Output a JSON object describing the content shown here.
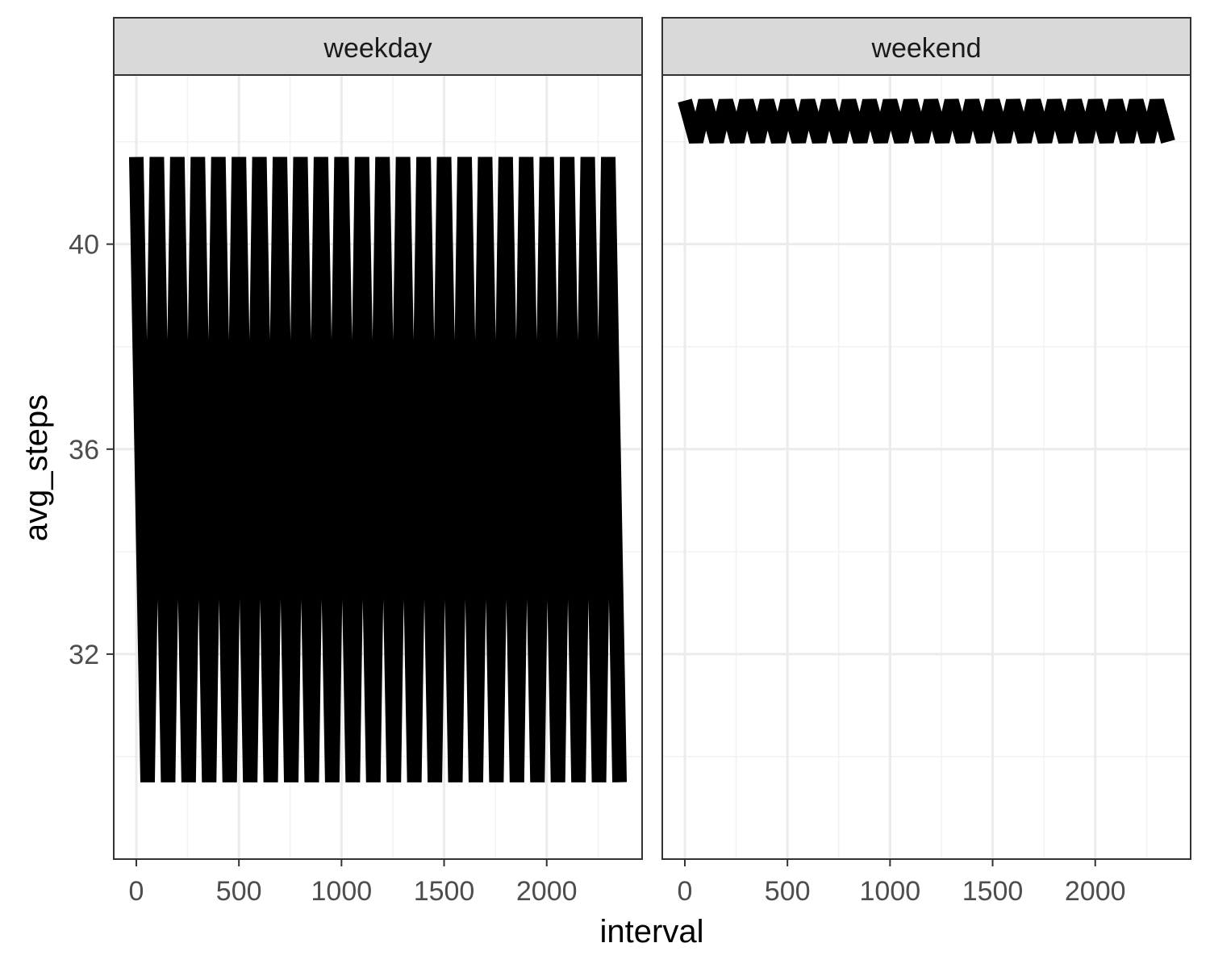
{
  "chart_data": {
    "type": "line",
    "facet_variable": "daytype",
    "xlabel": "interval",
    "ylabel": "avg_steps",
    "xlim": [
      -110,
      2465
    ],
    "ylim": [
      28.0,
      43.3
    ],
    "x_ticks": [
      0,
      500,
      1000,
      1500,
      2000
    ],
    "y_ticks": [
      32,
      36,
      40
    ],
    "grid": true,
    "theme": "bw",
    "line_color": "#000000",
    "panels": [
      {
        "name": "weekday",
        "series": [
          {
            "x_start": 0,
            "x_end": 2355,
            "interval_pattern": "HHMM (0, 5, ... 55, 100, 105, ... 2355)",
            "y_at_minute_00": 41.7,
            "y_at_minute_55": 29.5,
            "note_shape": "each hour the value falls linearly from the :00 level to the :55 level, then jumps back up at the next hour (sawtooth)"
          }
        ]
      },
      {
        "name": "weekend",
        "series": [
          {
            "x_start": 0,
            "x_end": 2355,
            "interval_pattern": "HHMM (0, 5, ... 55, 100, 105, ... 2355)",
            "y_at_minute_00": 42.8,
            "y_at_minute_55": 42.0,
            "note_shape": "each hour the value falls linearly from the :00 level to the :55 level, then jumps back up at the next hour (sawtooth)"
          }
        ]
      }
    ]
  }
}
